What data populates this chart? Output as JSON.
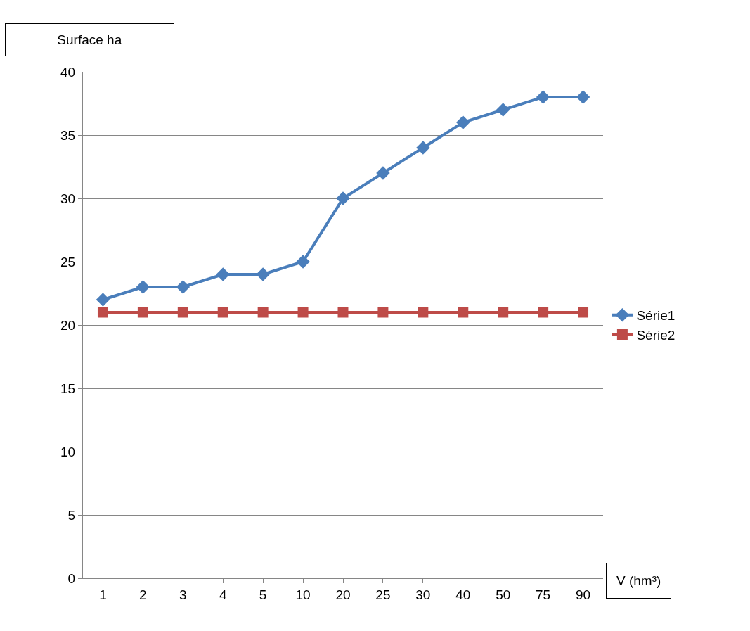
{
  "chart_data": {
    "type": "line",
    "ylabel": "Surface ha",
    "xlabel": "V (hm³)",
    "categories": [
      "1",
      "2",
      "3",
      "4",
      "5",
      "10",
      "20",
      "25",
      "30",
      "40",
      "50",
      "75",
      "90"
    ],
    "series": [
      {
        "name": "Série1",
        "color": "#4a7ebb",
        "marker": "diamond",
        "values": [
          22,
          23,
          23,
          24,
          24,
          25,
          30,
          32,
          34,
          36,
          37,
          38,
          38
        ]
      },
      {
        "name": "Série2",
        "color": "#be4b48",
        "marker": "square",
        "values": [
          21,
          21,
          21,
          21,
          21,
          21,
          21,
          21,
          21,
          21,
          21,
          21,
          21
        ]
      }
    ],
    "ylim": [
      0,
      40
    ],
    "yticks": [
      0,
      5,
      10,
      15,
      20,
      25,
      30,
      35,
      40
    ],
    "grid": "y",
    "legend": "right",
    "line_style": "solid"
  }
}
